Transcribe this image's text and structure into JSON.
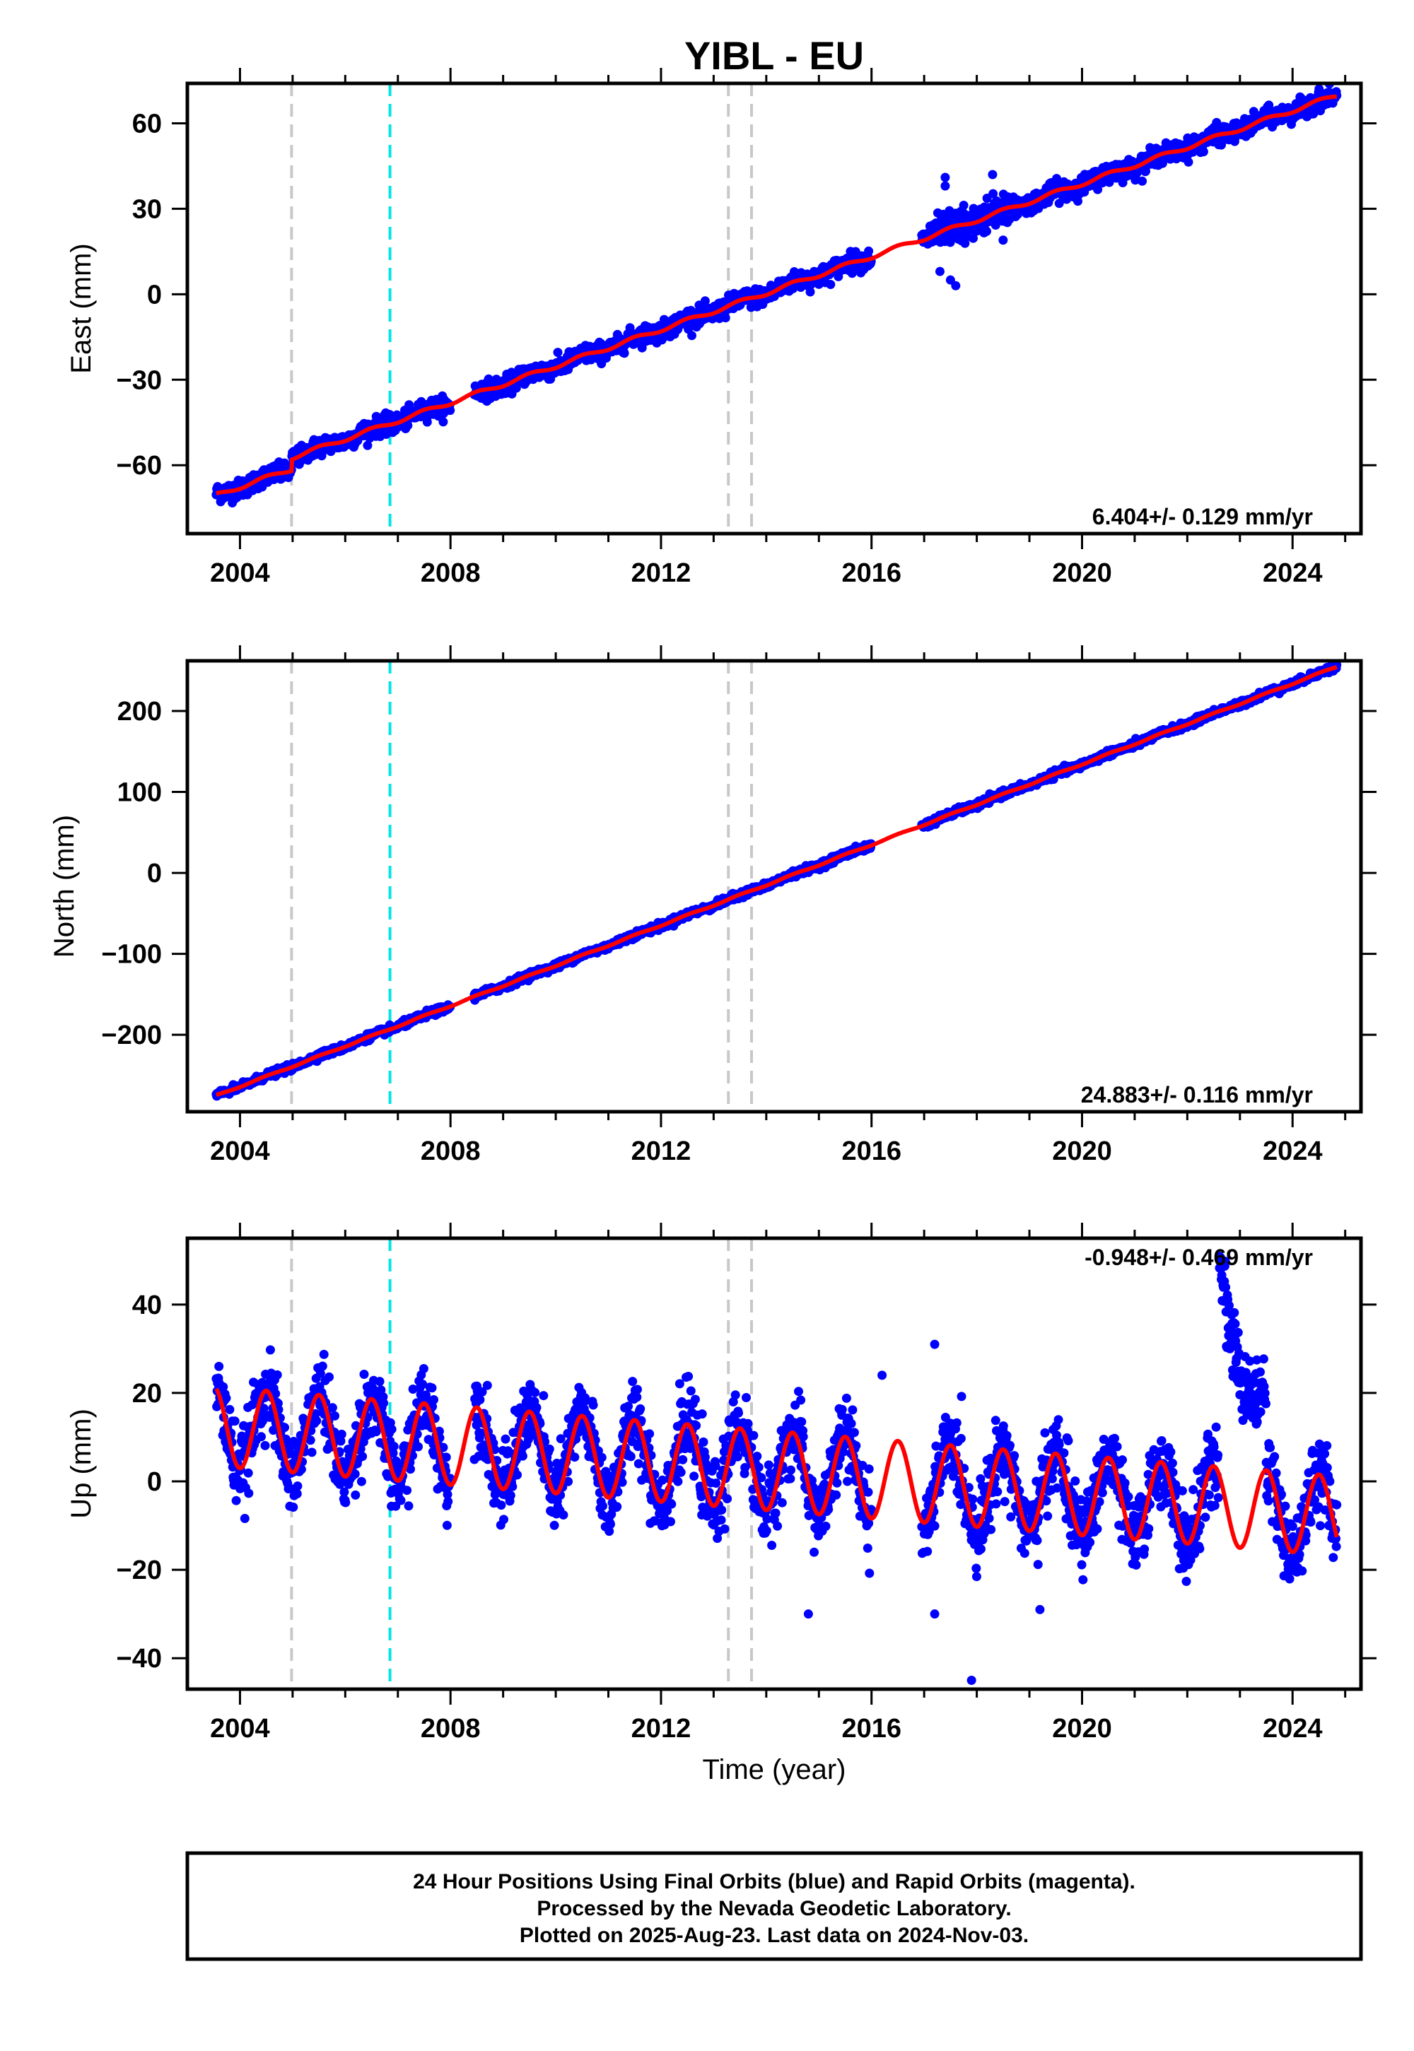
{
  "title": "YIBL - EU",
  "xlabel": "Time (year)",
  "footer": {
    "line1": "24 Hour Positions Using Final Orbits (blue) and Rapid Orbits (magenta).",
    "line2": "Processed by the Nevada Geodetic Laboratory.",
    "line3": "Plotted on 2025-Aug-23. Last data on 2024-Nov-03."
  },
  "colors": {
    "data": "#0000ff",
    "model": "#ff0000",
    "equipment_change": "#c8c8c8",
    "earthquake": "#00e5e5"
  },
  "chart_data": [
    {
      "type": "scatter",
      "name": "east",
      "ylabel": "East (mm)",
      "rate": "6.404+/- 0.129 mm/yr",
      "xlim": [
        2003.0,
        2025.3
      ],
      "ylim": [
        -84,
        74
      ],
      "xticks": [
        "2004",
        "2008",
        "2012",
        "2016",
        "2020",
        "2024"
      ],
      "yticks": [
        "60",
        "30",
        "0",
        "−30",
        "−60"
      ],
      "ytick_values": [
        60,
        30,
        0,
        -30,
        -60
      ],
      "equipment_changes": [
        2004.98,
        2013.28,
        2013.72
      ],
      "earthquakes": [
        2006.85
      ],
      "data_start": 2003.55,
      "data_end": 2024.84,
      "gaps": [
        [
          2008.0,
          2008.45
        ],
        [
          2016.0,
          2016.95
        ]
      ],
      "model": {
        "rate_mm_yr": 6.404,
        "value_at_2014": 0.4,
        "annual_amplitude": 0.7,
        "offsets": [
          {
            "year": 2004.98,
            "size": 4.0
          }
        ]
      },
      "noise_mm": 1.6,
      "outliers": [
        {
          "x": 2017.4,
          "y": 41
        },
        {
          "x": 2017.4,
          "y": 38
        },
        {
          "x": 2018.3,
          "y": 42
        },
        {
          "x": 2017.3,
          "y": 8
        },
        {
          "x": 2017.5,
          "y": 5
        },
        {
          "x": 2017.6,
          "y": 3
        },
        {
          "x": 2018.5,
          "y": 19
        }
      ]
    },
    {
      "type": "scatter",
      "name": "north",
      "ylabel": "North (mm)",
      "rate": "24.883+/- 0.116 mm/yr",
      "xlim": [
        2003.0,
        2025.3
      ],
      "ylim": [
        -295,
        262
      ],
      "xticks": [
        "2004",
        "2008",
        "2012",
        "2016",
        "2020",
        "2024"
      ],
      "yticks": [
        "200",
        "100",
        "0",
        "−100",
        "−200"
      ],
      "ytick_values": [
        200,
        100,
        0,
        -100,
        -200
      ],
      "equipment_changes": [
        2004.98,
        2013.28,
        2013.72
      ],
      "earthquakes": [
        2006.85
      ],
      "data_start": 2003.55,
      "data_end": 2024.84,
      "gaps": [
        [
          2008.0,
          2008.45
        ],
        [
          2016.0,
          2016.95
        ]
      ],
      "model": {
        "rate_mm_yr": 24.883,
        "value_at_2014": -15.0,
        "annual_amplitude": 0.8,
        "offsets": []
      },
      "noise_mm": 2.0,
      "outliers": []
    },
    {
      "type": "scatter",
      "name": "up",
      "ylabel": "Up (mm)",
      "rate": "-0.948+/- 0.469 mm/yr",
      "xlim": [
        2003.0,
        2025.3
      ],
      "ylim": [
        -47,
        55
      ],
      "xticks": [
        "2004",
        "2008",
        "2012",
        "2016",
        "2020",
        "2024"
      ],
      "yticks": [
        "40",
        "20",
        "0",
        "−20",
        "−40"
      ],
      "ytick_values": [
        40,
        20,
        0,
        -20,
        -40
      ],
      "equipment_changes": [
        2004.98,
        2013.28,
        2013.72
      ],
      "earthquakes": [
        2006.85
      ],
      "data_start": 2003.55,
      "data_end": 2024.84,
      "gaps": [
        [
          2008.0,
          2008.45
        ],
        [
          2016.0,
          2016.95
        ]
      ],
      "model": {
        "rate_mm_yr": -0.948,
        "value_at_2014": 2.5,
        "annual_amplitude": 9.0,
        "offsets": []
      },
      "noise_mm": 4.2,
      "anomaly": {
        "x_start": 2022.6,
        "x_end": 2023.5,
        "peak_mm": 50,
        "low_mm": 20
      },
      "outliers": [
        {
          "x": 2017.9,
          "y": -45
        },
        {
          "x": 2014.8,
          "y": -30
        },
        {
          "x": 2017.2,
          "y": -30
        },
        {
          "x": 2019.2,
          "y": -29
        },
        {
          "x": 2017.2,
          "y": 31
        },
        {
          "x": 2016.2,
          "y": 24
        },
        {
          "x": 2003.6,
          "y": 26
        }
      ]
    }
  ]
}
